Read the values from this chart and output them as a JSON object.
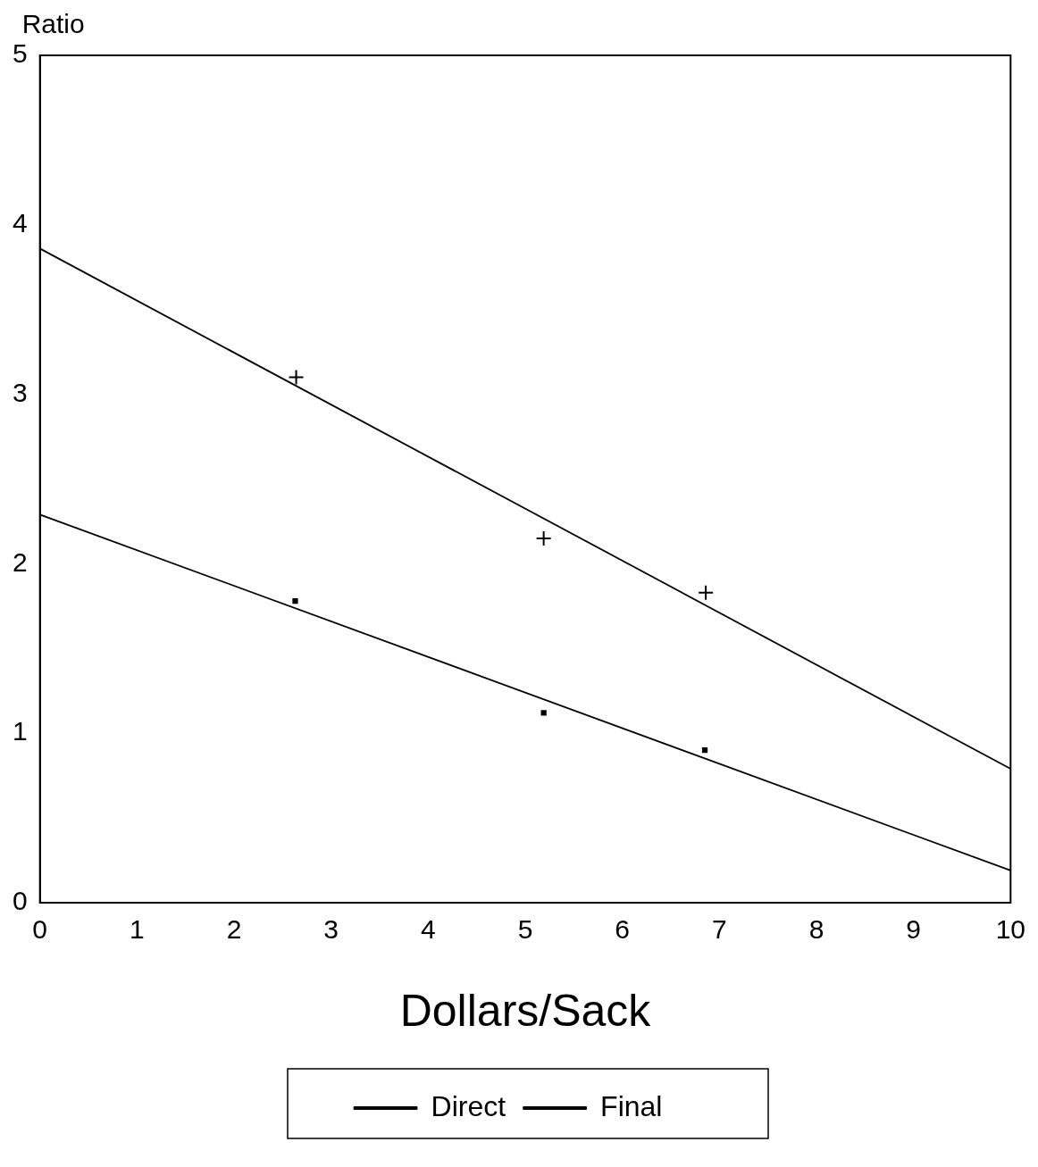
{
  "chart_data": {
    "type": "line",
    "xlabel": "Dollars/Sack",
    "ylabel": "Ratio",
    "xlim": [
      0,
      10
    ],
    "xticks": [
      0,
      1,
      2,
      3,
      4,
      5,
      6,
      7,
      8,
      9,
      10
    ],
    "ylim": [
      0,
      5
    ],
    "yticks": [
      0,
      1,
      2,
      3,
      4,
      5
    ],
    "grid": false,
    "legend": "bottom",
    "series": [
      {
        "name": "Direct",
        "type": "line",
        "color": "#000000",
        "x": [
          0,
          10
        ],
        "values": [
          2.29,
          0.19
        ],
        "marker": "none"
      },
      {
        "type": "scatter",
        "color": "#000000",
        "x": [
          2.63,
          5.19,
          6.85
        ],
        "values": [
          1.78,
          1.12,
          0.9
        ],
        "marker": "square"
      },
      {
        "name": "Final",
        "type": "line",
        "color": "#000000",
        "x": [
          0,
          10
        ],
        "values": [
          3.86,
          0.79
        ],
        "marker": "none"
      },
      {
        "type": "scatter",
        "color": "#000000",
        "x": [
          2.64,
          5.19,
          6.86
        ],
        "values": [
          3.1,
          2.15,
          1.83
        ],
        "marker": "cross"
      }
    ]
  }
}
